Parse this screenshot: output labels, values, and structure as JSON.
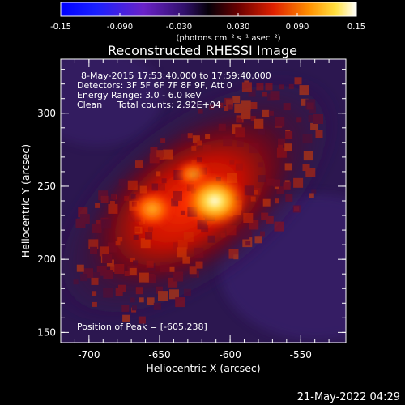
{
  "title": "Reconstructed RHESSI Image",
  "colorbar": {
    "ticks": [
      "-0.15",
      "-0.090",
      "-0.030",
      "0.030",
      "0.090",
      "0.15"
    ],
    "unit_label": "(photons cm⁻² s⁻¹ asec⁻²)",
    "range": [
      -0.15,
      0.15
    ]
  },
  "annotations": {
    "line1": "8-May-2015 17:53:40.000 to 17:59:40.000",
    "line2": "Detectors: 3F 5F 6F 7F 8F 9F, Att 0",
    "line3": "Energy Range: 3.0 - 6.0 keV",
    "line4_left": "Clean",
    "line4_right": "Total counts: 2.92E+04",
    "peak": "Position of Peak = [-605,238]"
  },
  "x_axis": {
    "label": "Heliocentric X (arcsec)",
    "ticks": [
      "-700",
      "-650",
      "-600",
      "-550"
    ],
    "range": [
      -720,
      -518
    ]
  },
  "y_axis": {
    "label": "Heliocentric Y (arcsec)",
    "ticks": [
      "150",
      "200",
      "250",
      "300"
    ],
    "range": [
      143,
      337
    ]
  },
  "timestamp": "21-May-2022 04:29",
  "colors": {
    "background": "#000000",
    "image_background": "#2c1750",
    "flare_peak": "#ffffe8"
  }
}
